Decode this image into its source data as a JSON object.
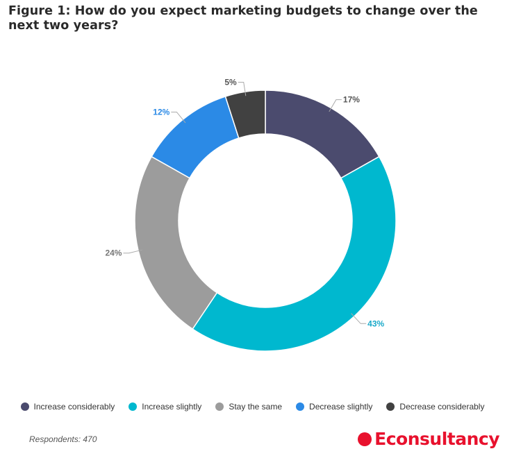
{
  "chart_data": {
    "type": "pie",
    "title": "Figure 1: How do you expect marketing budgets to change over the next two years?",
    "categories": [
      "Increase considerably",
      "Increase slightly",
      "Stay the same",
      "Decrease slightly",
      "Decrease considerably"
    ],
    "values": [
      17,
      43,
      24,
      12,
      5
    ],
    "labels": [
      "17%",
      "43%",
      "24%",
      "12%",
      "5%"
    ],
    "colors": [
      "#4b4b6e",
      "#00b8cf",
      "#9c9c9c",
      "#2b8ae6",
      "#414141"
    ],
    "label_colors": [
      "#555555",
      "#1aa9c9",
      "#777777",
      "#2b8ae6",
      "#555555"
    ],
    "donut": true,
    "legend_position": "bottom"
  },
  "footnote": "Respondents: 470",
  "brand": {
    "name": "Econsultancy",
    "color": "#e8112d"
  }
}
